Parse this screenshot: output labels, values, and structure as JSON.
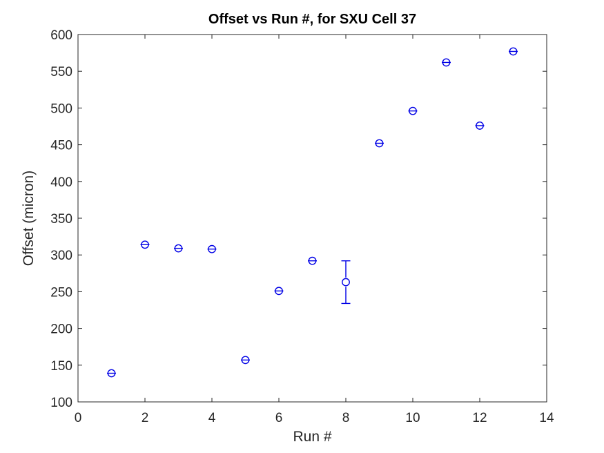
{
  "figure": {
    "title": "Offset vs Run #, for SXU Cell 37",
    "xlabel": "Run #",
    "ylabel": "Offset (micron)"
  },
  "chart_data": {
    "type": "scatter",
    "title": "Offset vs Run #, for SXU Cell 37",
    "xlabel": "Run #",
    "ylabel": "Offset (micron)",
    "xlim": [
      0,
      14
    ],
    "ylim": [
      100,
      600
    ],
    "xticks": [
      0,
      2,
      4,
      6,
      8,
      10,
      12,
      14
    ],
    "yticks": [
      100,
      150,
      200,
      250,
      300,
      350,
      400,
      450,
      500,
      550,
      600
    ],
    "grid": false,
    "legend": null,
    "marker": "open-circle-with-error-bars",
    "marker_color": "#0000E6",
    "axis_color": "#262626",
    "series": [
      {
        "name": "Offset",
        "x": [
          1,
          2,
          3,
          4,
          5,
          6,
          7,
          8,
          9,
          10,
          11,
          12,
          13
        ],
        "y": [
          139,
          314,
          309,
          308,
          157,
          251,
          292,
          263,
          452,
          496,
          562,
          476,
          577
        ],
        "yerr": [
          2,
          2,
          2,
          2,
          2,
          2,
          2,
          29,
          2,
          2,
          2,
          2,
          2
        ]
      }
    ]
  }
}
